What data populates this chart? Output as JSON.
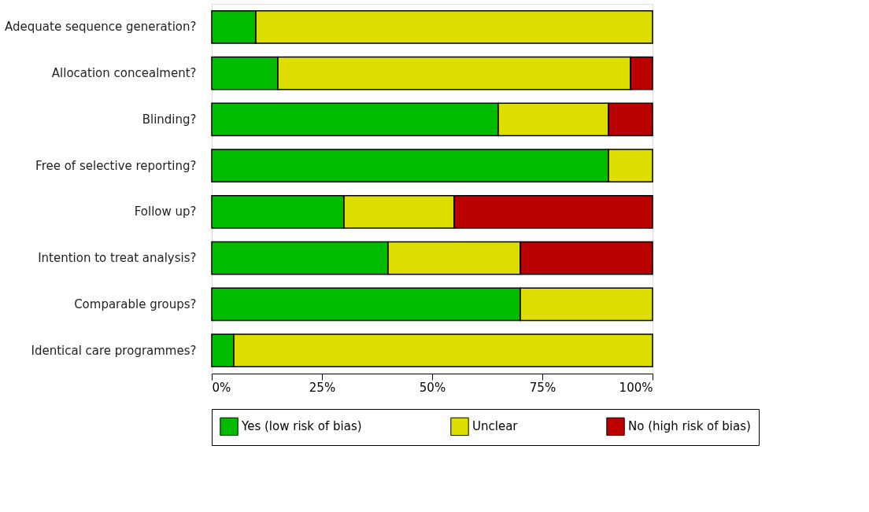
{
  "chart_data": {
    "type": "bar",
    "orientation": "horizontal",
    "stacked": true,
    "categories": [
      "Adequate sequence generation?",
      "Allocation concealment?",
      "Blinding?",
      "Free of selective reporting?",
      "Follow up?",
      "Intention to treat analysis?",
      "Comparable groups?",
      "Identical care programmes?"
    ],
    "series": [
      {
        "name": "Yes (low risk of bias)",
        "color": "#00bb00",
        "values": [
          10,
          15,
          65,
          90,
          30,
          40,
          70,
          5
        ]
      },
      {
        "name": "Unclear",
        "color": "#dddd00",
        "values": [
          90,
          80,
          25,
          10,
          25,
          30,
          30,
          95
        ]
      },
      {
        "name": "No (high risk of bias)",
        "color": "#bb0000",
        "values": [
          0,
          5,
          10,
          0,
          45,
          30,
          0,
          0
        ]
      }
    ],
    "xlim": [
      0,
      100
    ],
    "xticks": [
      {
        "value": 0,
        "label": "0%"
      },
      {
        "value": 25,
        "label": "25%"
      },
      {
        "value": 50,
        "label": "50%"
      },
      {
        "value": 75,
        "label": "75%"
      },
      {
        "value": 100,
        "label": "100%"
      }
    ],
    "grid": false,
    "legend": "bottom"
  }
}
